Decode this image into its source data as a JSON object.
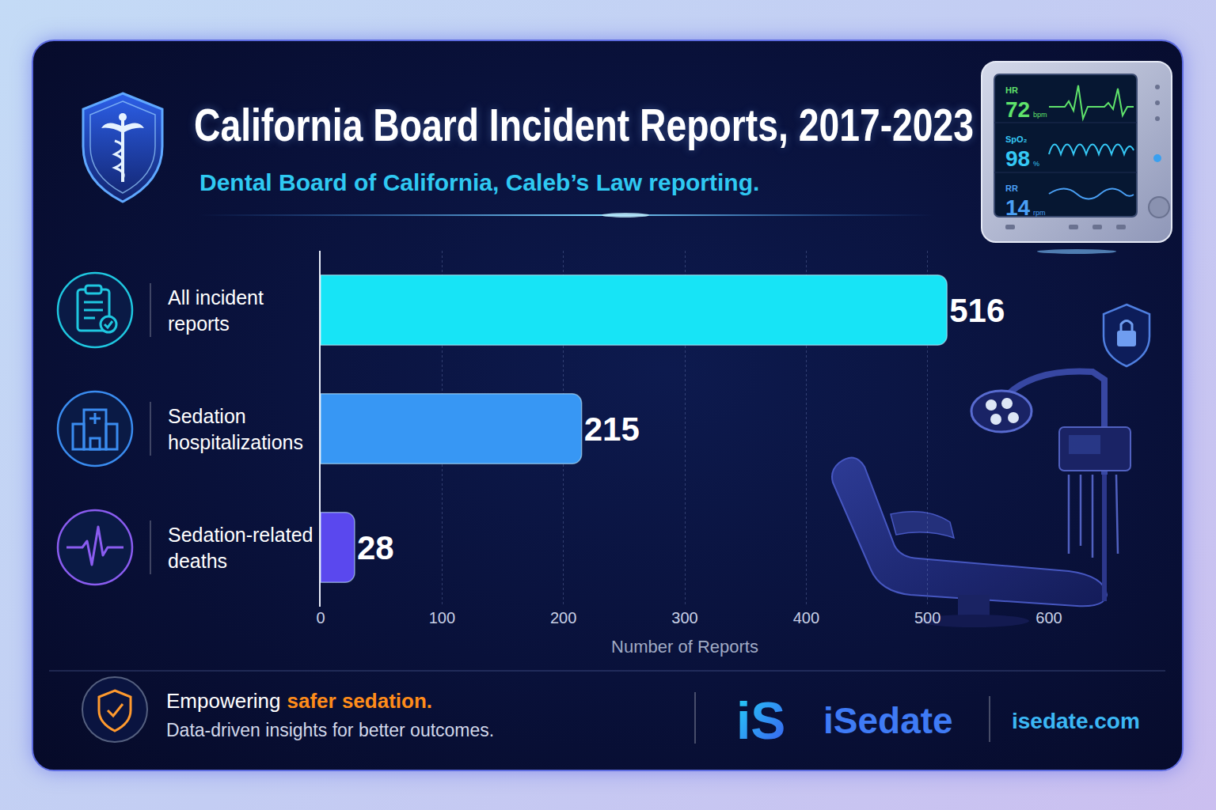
{
  "chart_data": {
    "type": "bar",
    "orientation": "horizontal",
    "title": "California Board Incident Reports, 2017-2023",
    "subtitle": "Dental Board of California, Caleb’s Law reporting.",
    "categories": [
      "All incident reports",
      "Sedation hospitalizations",
      "Sedation-related deaths"
    ],
    "values": [
      516,
      215,
      28
    ],
    "colors": [
      "#17e4f6",
      "#3797f4",
      "#5a48ee"
    ],
    "xlim": [
      0,
      600
    ],
    "xticks": [
      0,
      100,
      200,
      300,
      400,
      500,
      600
    ],
    "xlabel": "Number of Reports",
    "grid": true,
    "data_labels": true
  },
  "monitor": [
    {
      "label": "HR",
      "value": 72,
      "unit": "bpm"
    },
    {
      "label": "SpO₂",
      "value": 98,
      "unit": "%"
    },
    {
      "label": "RR",
      "value": 14,
      "unit": "rpm"
    }
  ],
  "footer": {
    "tagline_start": "Empowering",
    "tagline_highlight": "safer sedation.",
    "tagline_sub": "Data-driven insights for better outcomes.",
    "logo_mark": "iS",
    "brand": "iSedate",
    "website": "isedate.com"
  }
}
